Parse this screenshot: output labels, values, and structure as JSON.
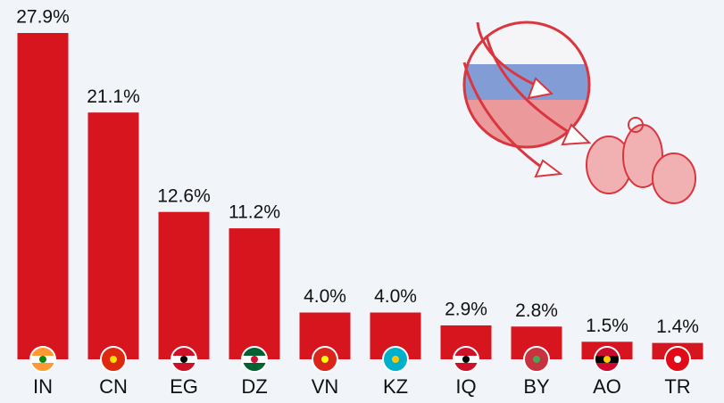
{
  "chart_data": {
    "type": "bar",
    "categories": [
      "IN",
      "CN",
      "EG",
      "DZ",
      "VN",
      "KZ",
      "IQ",
      "BY",
      "AO",
      "TR"
    ],
    "values": [
      27.9,
      21.1,
      12.6,
      11.2,
      4.0,
      4.0,
      2.9,
      2.8,
      1.5,
      1.4
    ],
    "value_labels": [
      "27.9%",
      "21.1%",
      "12.6%",
      "11.2%",
      "4.0%",
      "4.0%",
      "2.9%",
      "2.8%",
      "1.5%",
      "1.4%"
    ],
    "color": "#d7151f"
  }
}
